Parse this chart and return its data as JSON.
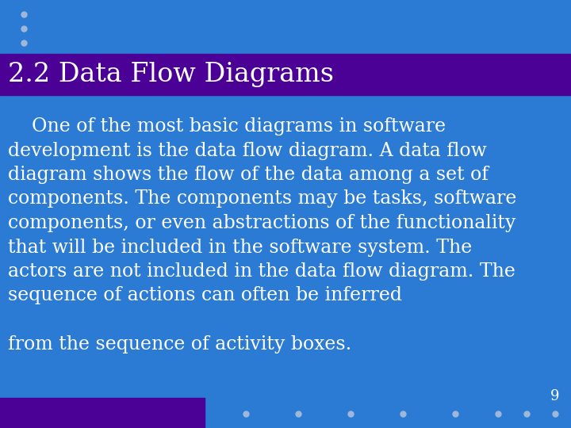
{
  "bg_color": "#2B7BD4",
  "header_bg_color": "#4B0096",
  "title_text": "2.2 Data Flow Diagrams",
  "title_color": "#FFFFFF",
  "title_fontsize": 24,
  "body_lines": [
    "    One of the most basic diagrams in software",
    "development is the data flow diagram. A data flow",
    "diagram shows the flow of the data among a set of",
    "components. The components may be tasks, software",
    "components, or even abstractions of the functionality",
    "that will be included in the software system. The",
    "actors are not included in the data flow diagram. The",
    "sequence of actions can often be inferred",
    "",
    "from the sequence of activity boxes."
  ],
  "body_color": "#FFFFFF",
  "body_fontsize": 17,
  "dots_top_color": "#A0B8D8",
  "dots_bottom_color": "#A0B8D8",
  "page_number": "9",
  "page_number_color": "#FFFFFF",
  "footer_bar_color": "#4B0096"
}
